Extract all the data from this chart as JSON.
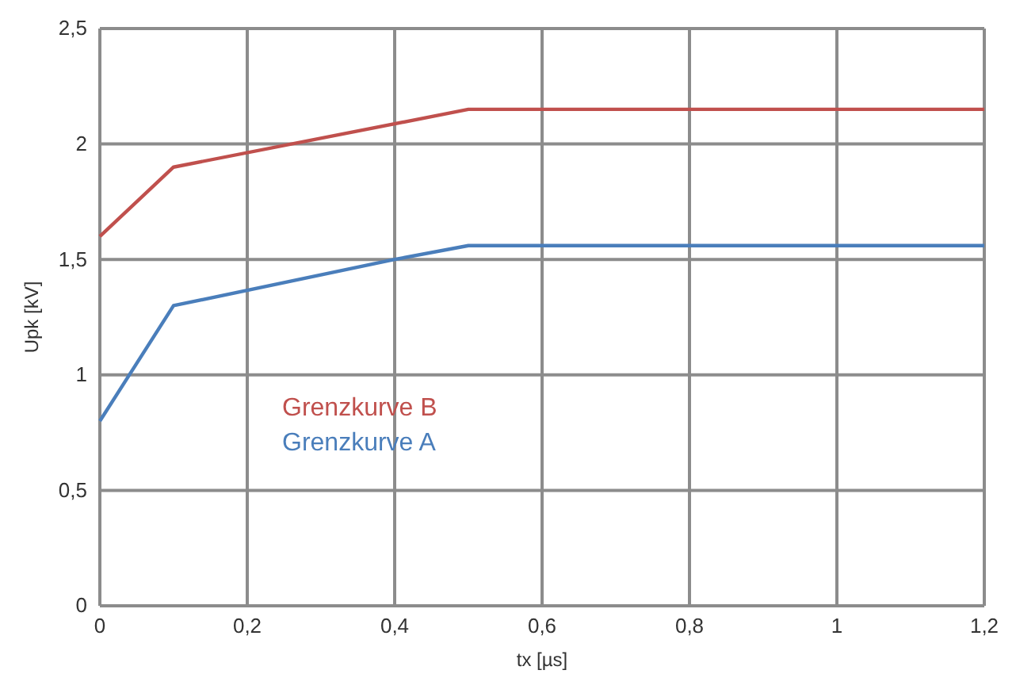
{
  "chart_data": {
    "type": "line",
    "xlabel": "tx [µs]",
    "ylabel": "Upk [kV]",
    "xlim": [
      0,
      1.2
    ],
    "xticks": [
      0,
      {
        "value": 0.2,
        "label": "0,2"
      },
      {
        "value": 0.4,
        "label": "0,4"
      },
      {
        "value": 0.6,
        "label": "0,6"
      },
      {
        "value": 0.8,
        "label": "0,8"
      },
      1,
      {
        "value": 1.2,
        "label": "1,2"
      }
    ],
    "ylim": [
      0,
      2.5
    ],
    "yticks": [
      0,
      {
        "value": 0.5,
        "label": "0,5"
      },
      1,
      {
        "value": 1.5,
        "label": "1,5"
      },
      2,
      {
        "value": 2.5,
        "label": "2,5"
      }
    ],
    "grid": true,
    "legend": "left",
    "line_style": "solid",
    "series": [
      {
        "name": "Grenzkurve B",
        "color": "#c0504d",
        "x": [
          0,
          0.1,
          0.5,
          1.2
        ],
        "values": [
          1.6,
          1.9,
          2.15,
          2.15
        ]
      },
      {
        "name": "Grenzkurve A",
        "color": "#4a7ebb",
        "x": [
          0,
          0.1,
          0.4,
          0.5,
          1.2
        ],
        "values": [
          0.8,
          1.3,
          1.5,
          1.56,
          1.56
        ]
      }
    ]
  }
}
